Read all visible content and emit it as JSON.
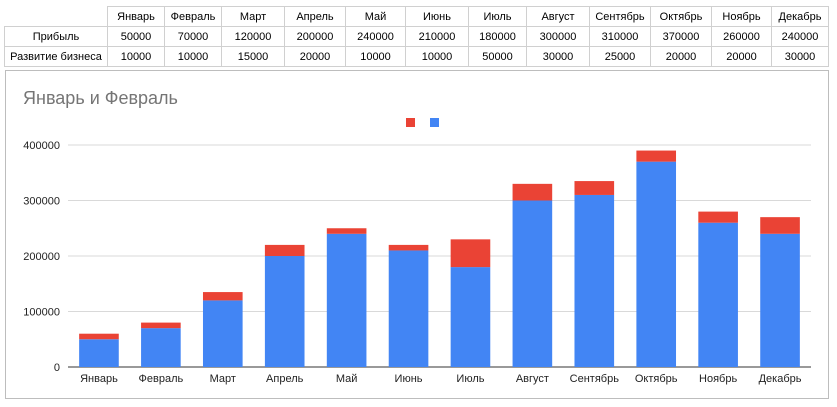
{
  "sheet": {
    "headers": [
      "Январь",
      "Февраль",
      "Март",
      "Апрель",
      "Май",
      "Июнь",
      "Июль",
      "Август",
      "Сентябрь",
      "Октябрь",
      "Ноябрь",
      "Декабрь"
    ],
    "rows": [
      {
        "label": "Прибыль",
        "values": [
          "50000",
          "70000",
          "120000",
          "200000",
          "240000",
          "210000",
          "180000",
          "300000",
          "310000",
          "370000",
          "260000",
          "240000"
        ]
      },
      {
        "label": "Развитие бизнеса",
        "values": [
          "10000",
          "10000",
          "15000",
          "20000",
          "10000",
          "10000",
          "50000",
          "30000",
          "25000",
          "20000",
          "20000",
          "30000"
        ]
      }
    ]
  },
  "chart_data": {
    "type": "bar",
    "stacked": true,
    "title": "Январь и Февраль",
    "xlabel": "",
    "ylabel": "",
    "categories": [
      "Январь",
      "Февраль",
      "Март",
      "Апрель",
      "Май",
      "Июнь",
      "Июль",
      "Август",
      "Сентябрь",
      "Октябрь",
      "Ноябрь",
      "Декабрь"
    ],
    "series": [
      {
        "color": "#4285f4",
        "values": [
          50000,
          70000,
          120000,
          200000,
          240000,
          210000,
          180000,
          300000,
          310000,
          370000,
          260000,
          240000
        ]
      },
      {
        "color": "#ea4335",
        "values": [
          10000,
          10000,
          15000,
          20000,
          10000,
          10000,
          50000,
          30000,
          25000,
          20000,
          20000,
          30000
        ]
      }
    ],
    "ylim": [
      0,
      400000
    ],
    "yticks": [
      "0",
      "100000",
      "200000",
      "300000",
      "400000"
    ],
    "grid": true,
    "legend": "top-center"
  }
}
